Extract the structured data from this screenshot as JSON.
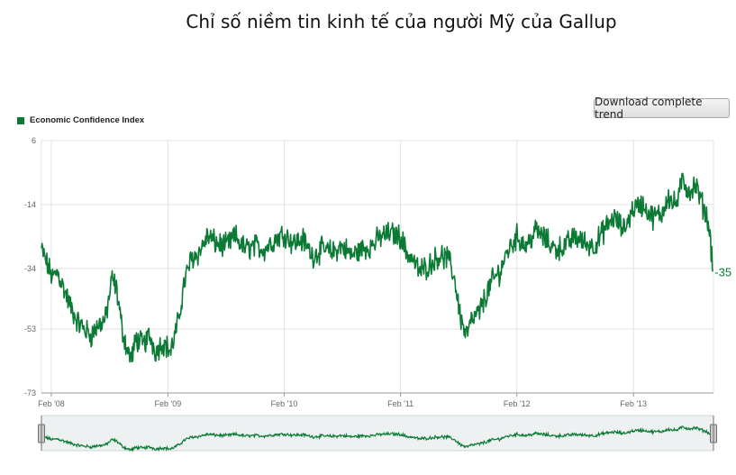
{
  "page": {
    "title": "Chỉ số niềm tin kinh tế của người Mỹ của Gallup",
    "download_button_label": "Download complete trend"
  },
  "colors": {
    "series": "#0a7a34",
    "grid": "#e2e2e2",
    "axis": "#999999",
    "navigator_bg": "#eef1f2"
  },
  "chart_data": {
    "type": "line",
    "title": "Chỉ số niềm tin kinh tế của người Mỹ của Gallup",
    "xlabel": "",
    "ylabel": "",
    "legend": "top-left",
    "grid": true,
    "x_range": [
      "2008-01-01",
      "2013-10-10"
    ],
    "ylim": [
      -73,
      6
    ],
    "y_ticks": [
      "6",
      "-14",
      "-34",
      "-53",
      "-73"
    ],
    "y_tick_values": [
      6,
      -14,
      -34,
      -53,
      -73
    ],
    "x_ticks": [
      "Feb '08",
      "Feb '09",
      "Feb '10",
      "Feb '11",
      "Feb '12",
      "Feb '13"
    ],
    "x_tick_dates": [
      "2008-02-01",
      "2009-02-01",
      "2010-02-01",
      "2011-02-01",
      "2012-02-01",
      "2013-02-01"
    ],
    "last_value_label": "-35",
    "series": [
      {
        "name": "Economic Confidence Index",
        "x": [
          "2008-01-01",
          "2008-01-20",
          "2008-02-05",
          "2008-02-20",
          "2008-03-10",
          "2008-04-01",
          "2008-04-25",
          "2008-05-15",
          "2008-06-05",
          "2008-06-25",
          "2008-07-20",
          "2008-08-10",
          "2008-08-25",
          "2008-09-10",
          "2008-09-28",
          "2008-10-10",
          "2008-10-25",
          "2008-11-15",
          "2008-12-05",
          "2008-12-25",
          "2009-01-15",
          "2009-02-10",
          "2009-03-05",
          "2009-03-25",
          "2009-04-15",
          "2009-05-10",
          "2009-06-05",
          "2009-07-01",
          "2009-08-01",
          "2009-09-01",
          "2009-10-01",
          "2009-11-01",
          "2009-12-01",
          "2010-01-01",
          "2010-02-01",
          "2010-03-01",
          "2010-04-01",
          "2010-05-01",
          "2010-06-01",
          "2010-07-01",
          "2010-08-01",
          "2010-09-01",
          "2010-10-01",
          "2010-11-01",
          "2010-12-01",
          "2011-01-01",
          "2011-02-01",
          "2011-02-20",
          "2011-03-10",
          "2011-04-01",
          "2011-05-01",
          "2011-06-01",
          "2011-07-01",
          "2011-07-20",
          "2011-08-08",
          "2011-08-25",
          "2011-09-15",
          "2011-10-05",
          "2011-10-25",
          "2011-11-15",
          "2011-12-10",
          "2012-01-01",
          "2012-02-01",
          "2012-03-01",
          "2012-04-01",
          "2012-05-01",
          "2012-06-01",
          "2012-07-01",
          "2012-08-01",
          "2012-09-01",
          "2012-10-01",
          "2012-11-01",
          "2012-12-01",
          "2013-01-01",
          "2013-02-01",
          "2013-03-01",
          "2013-04-01",
          "2013-05-01",
          "2013-05-20",
          "2013-06-05",
          "2013-06-20",
          "2013-07-05",
          "2013-07-25",
          "2013-08-15",
          "2013-09-05",
          "2013-09-20",
          "2013-10-01",
          "2013-10-08"
        ],
        "values": [
          -28,
          -33,
          -37,
          -35,
          -40,
          -46,
          -51,
          -53,
          -55,
          -52,
          -50,
          -37,
          -41,
          -53,
          -60,
          -62,
          -56,
          -58,
          -55,
          -60,
          -57,
          -60,
          -51,
          -38,
          -31,
          -29,
          -24,
          -26,
          -27,
          -24,
          -28,
          -27,
          -28,
          -25,
          -23,
          -26,
          -25,
          -30,
          -28,
          -29,
          -27,
          -30,
          -28,
          -27,
          -24,
          -23,
          -24,
          -29,
          -31,
          -35,
          -33,
          -30,
          -31,
          -37,
          -49,
          -55,
          -50,
          -48,
          -43,
          -38,
          -35,
          -29,
          -24,
          -27,
          -22,
          -25,
          -28,
          -27,
          -24,
          -26,
          -27,
          -22,
          -18,
          -22,
          -15,
          -14,
          -18,
          -17,
          -11,
          -14,
          -13,
          -6,
          -10,
          -8,
          -14,
          -18,
          -25,
          -35
        ]
      }
    ]
  }
}
